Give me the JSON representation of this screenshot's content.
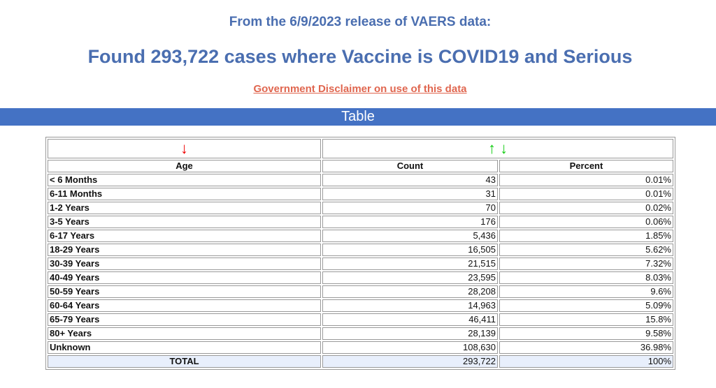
{
  "header": {
    "release": "From the 6/9/2023 release of VAERS data:",
    "title": "Found 293,722 cases where Vaccine is COVID19 and Serious",
    "disclaimer": "Government Disclaimer on use of this data",
    "band": "Table"
  },
  "table": {
    "sort_icons": {
      "age": "↓",
      "count_up": "↑",
      "count_down": "↓"
    },
    "columns": [
      "Age",
      "Count",
      "Percent"
    ],
    "rows": [
      {
        "age": "< 6 Months",
        "count": "43",
        "percent": "0.01%"
      },
      {
        "age": "6-11 Months",
        "count": "31",
        "percent": "0.01%"
      },
      {
        "age": "1-2 Years",
        "count": "70",
        "percent": "0.02%"
      },
      {
        "age": "3-5 Years",
        "count": "176",
        "percent": "0.06%"
      },
      {
        "age": "6-17 Years",
        "count": "5,436",
        "percent": "1.85%"
      },
      {
        "age": "18-29 Years",
        "count": "16,505",
        "percent": "5.62%"
      },
      {
        "age": "30-39 Years",
        "count": "21,515",
        "percent": "7.32%"
      },
      {
        "age": "40-49 Years",
        "count": "23,595",
        "percent": "8.03%"
      },
      {
        "age": "50-59 Years",
        "count": "28,208",
        "percent": "9.6%"
      },
      {
        "age": "60-64 Years",
        "count": "14,963",
        "percent": "5.09%"
      },
      {
        "age": "65-79 Years",
        "count": "46,411",
        "percent": "15.8%"
      },
      {
        "age": "80+ Years",
        "count": "28,139",
        "percent": "9.58%"
      },
      {
        "age": "Unknown",
        "count": "108,630",
        "percent": "36.98%"
      }
    ],
    "total": {
      "label": "TOTAL",
      "count": "293,722",
      "percent": "100%"
    }
  }
}
